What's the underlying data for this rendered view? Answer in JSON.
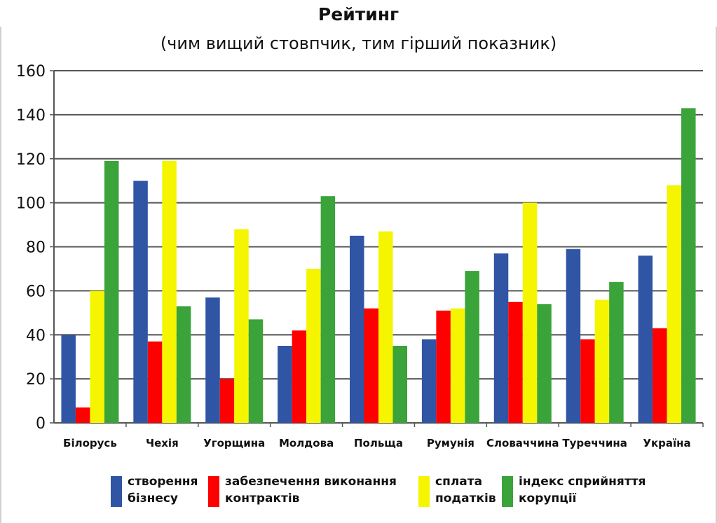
{
  "chart_data": {
    "type": "bar",
    "title": "Рейтинг",
    "subtitle": "(чим вищий стовпчик, тим гірший показник)",
    "categories": [
      "Білорусь",
      "Чехія",
      "Угорщина",
      "Молдова",
      "Польща",
      "Румунія",
      "Словаччина",
      "Туреччина",
      "Україна"
    ],
    "series": [
      {
        "name": "створення бізнесу",
        "color": "#2f55a4",
        "values": [
          40,
          110,
          57,
          35,
          85,
          38,
          77,
          79,
          76
        ]
      },
      {
        "name": "забезпечення виконання контрактів",
        "color": "#ff0000",
        "values": [
          7,
          37,
          20,
          42,
          52,
          51,
          55,
          38,
          43
        ]
      },
      {
        "name": "сплата податків",
        "color": "#f5f500",
        "values": [
          60,
          119,
          88,
          70,
          87,
          52,
          100,
          56,
          108
        ]
      },
      {
        "name": "індекс сприйняття корупції",
        "color": "#3aa33a",
        "values": [
          119,
          53,
          47,
          103,
          35,
          69,
          54,
          64,
          143
        ]
      }
    ],
    "ylim": [
      0,
      160
    ],
    "yticks": [
      0,
      20,
      40,
      60,
      80,
      100,
      120,
      140,
      160
    ],
    "grid": true,
    "legend_position": "bottom"
  },
  "legend": [
    {
      "line1": "створення",
      "line2": "бізнесу",
      "color": "#2f55a4"
    },
    {
      "line1": "забезпечення виконання",
      "line2": "контрактів",
      "color": "#ff0000"
    },
    {
      "line1": "сплата",
      "line2": "податків",
      "color": "#f5f500"
    },
    {
      "line1": "індекс сприйняття",
      "line2": "корупції",
      "color": "#3aa33a"
    }
  ]
}
